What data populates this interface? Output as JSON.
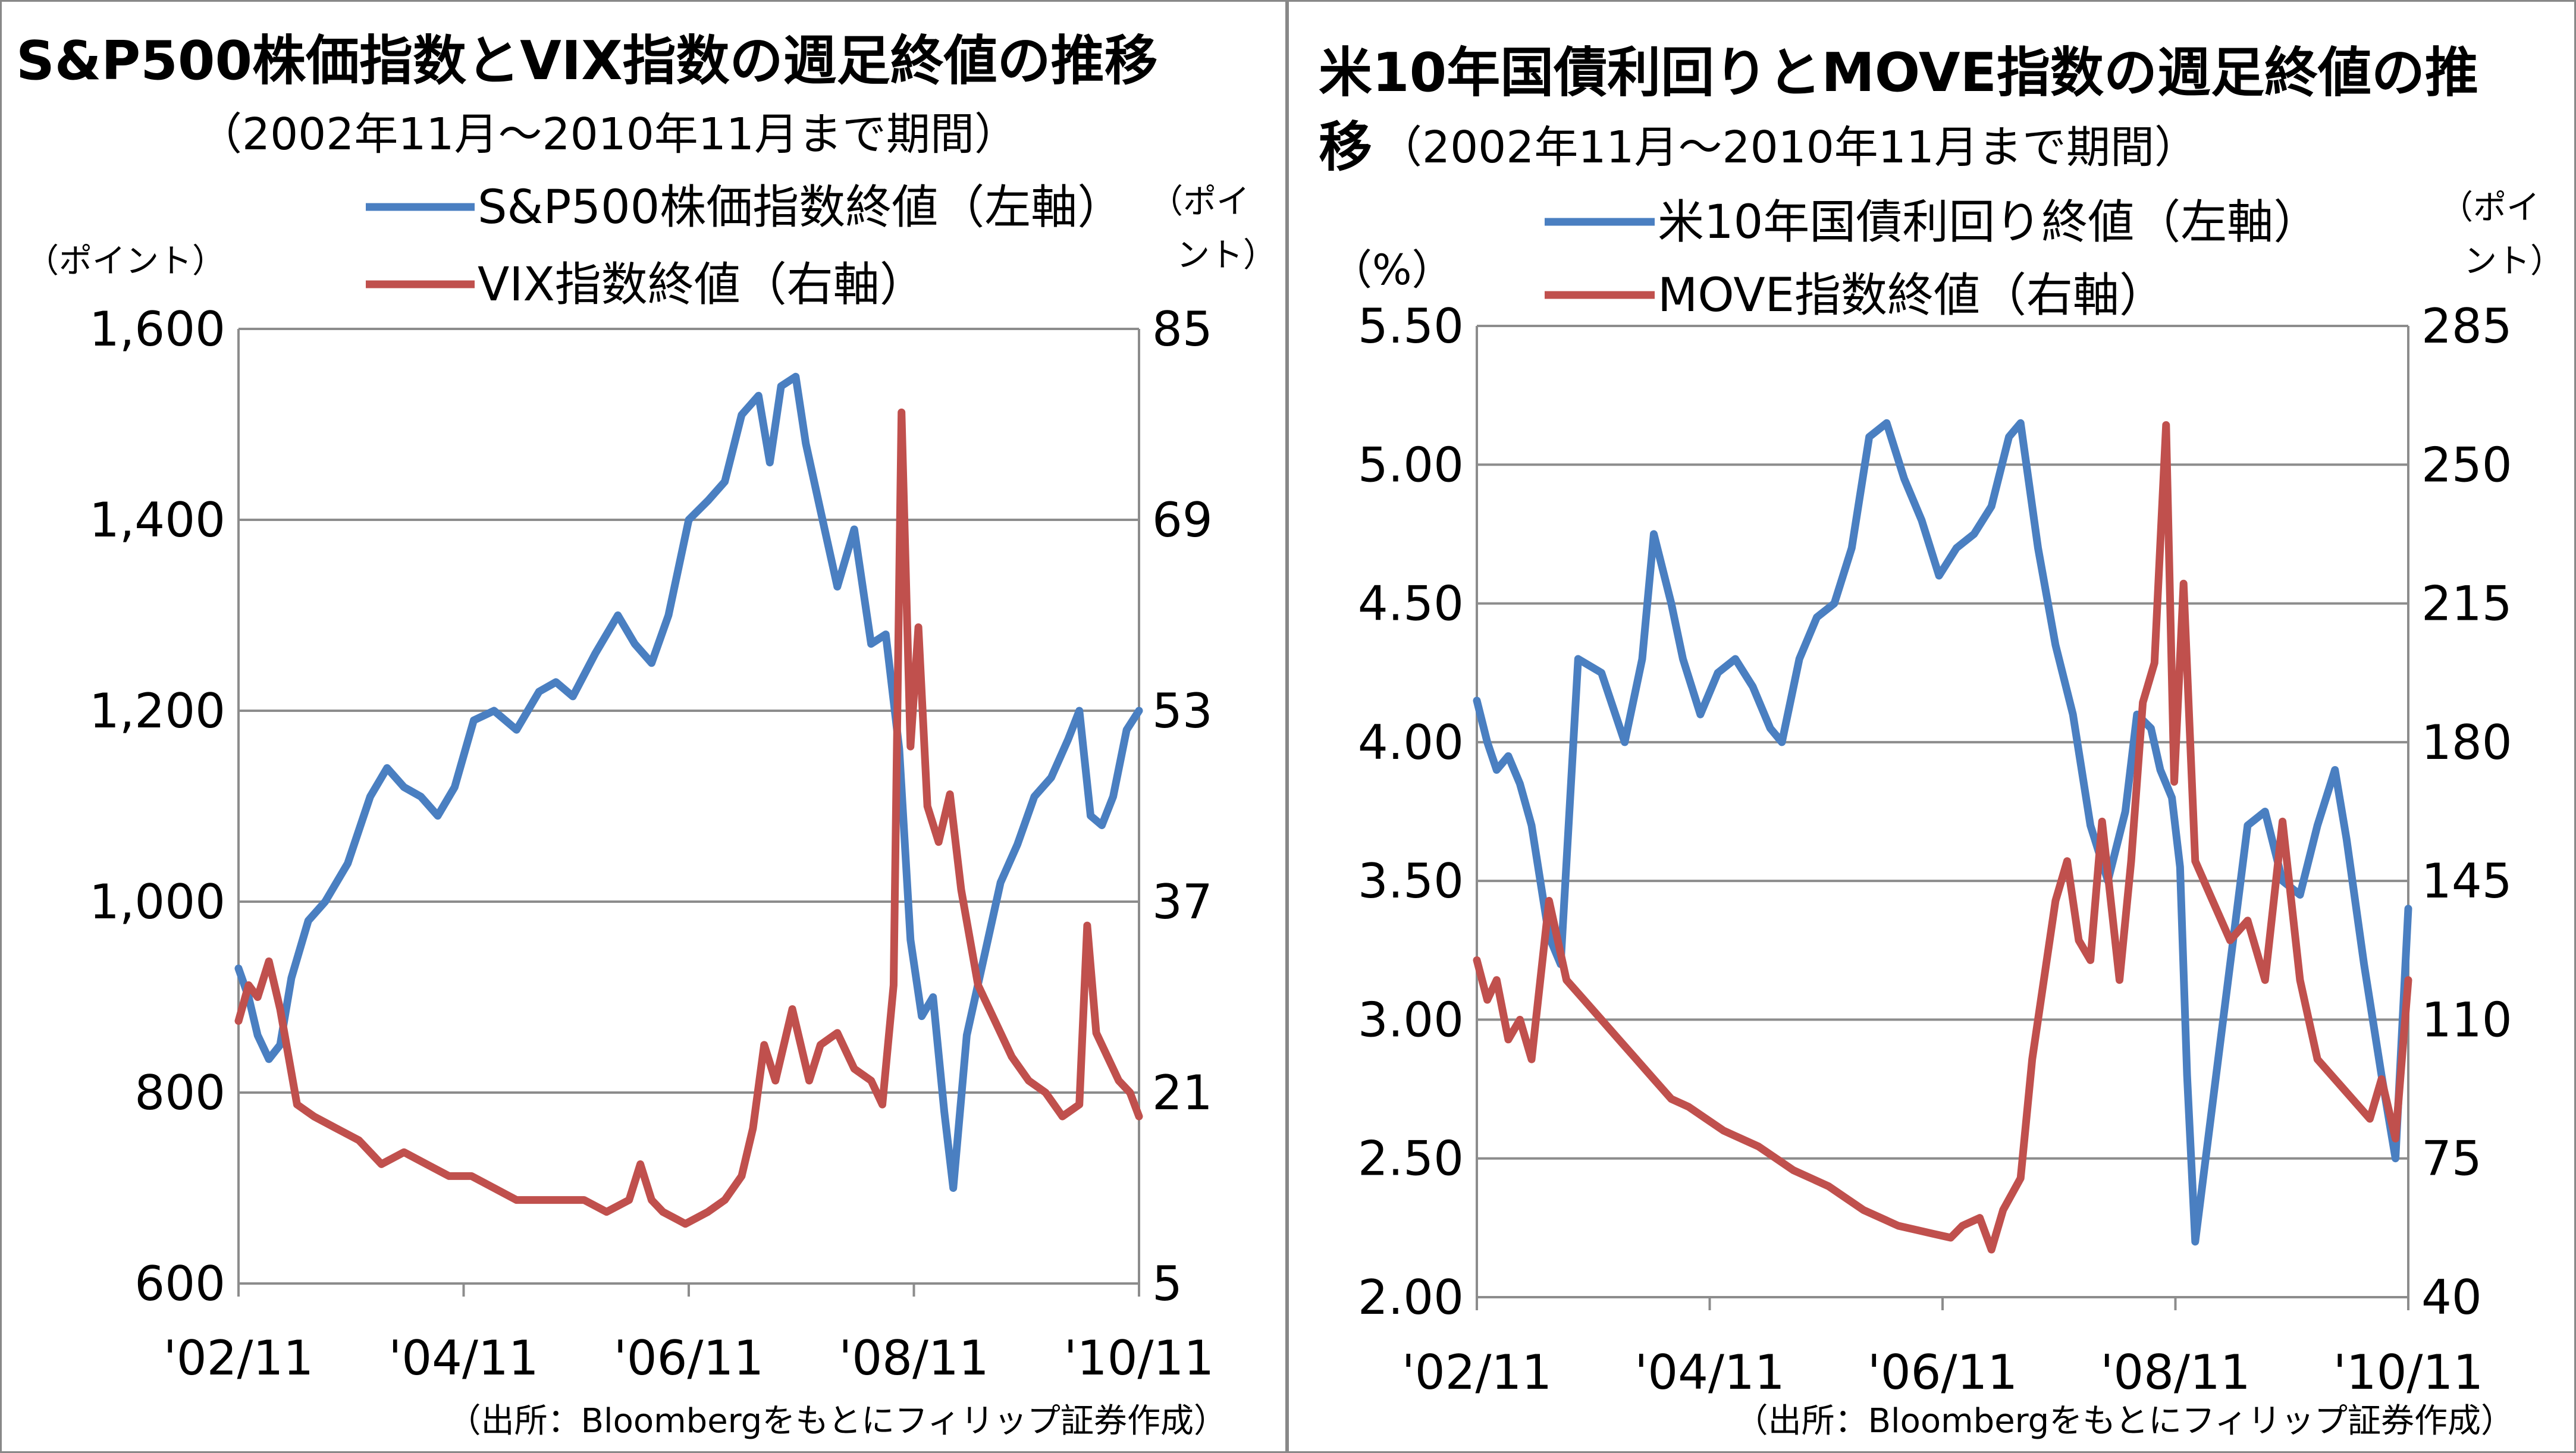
{
  "colors": {
    "series_left": "#4a7fc1",
    "series_right": "#c0504d",
    "grid": "#8c8c8c",
    "axis": "#8c8c8c"
  },
  "source_note": "（出所：Bloombergをもとにフィリップ証券作成）",
  "chart_data": [
    {
      "type": "line",
      "title": "S&P500株価指数とVIX指数の週足終値の推移",
      "subtitle": "（2002年11月～2010年11月まで期間）",
      "left_axis": {
        "unit": "（ポイント）",
        "ticks": [
          "1,600",
          "1,400",
          "1,200",
          "1,000",
          "800",
          "600"
        ],
        "range": [
          600,
          1600
        ]
      },
      "right_axis": {
        "unit_line1": "（ポイ",
        "unit_line2": "ント）",
        "ticks": [
          "85",
          "69",
          "53",
          "37",
          "21",
          "5"
        ],
        "range": [
          5,
          85
        ]
      },
      "x_ticks": [
        "'02/11",
        "'04/11",
        "'06/11",
        "'08/11",
        "'10/11"
      ],
      "x_tick_positions": [
        2002.83,
        2004.83,
        2006.83,
        2008.83,
        2010.83
      ],
      "x_range": [
        2002.83,
        2010.83
      ],
      "grid": true,
      "legend_placement": "top",
      "series": [
        {
          "name": "S&P500株価指数終値（左軸）",
          "axis": "left",
          "color": "#4a7fc1",
          "x": [
            2002.83,
            2002.92,
            2003.0,
            2003.1,
            2003.2,
            2003.3,
            2003.45,
            2003.6,
            2003.8,
            2004.0,
            2004.15,
            2004.3,
            2004.45,
            2004.6,
            2004.75,
            2004.92,
            2005.1,
            2005.3,
            2005.5,
            2005.65,
            2005.8,
            2006.0,
            2006.2,
            2006.35,
            2006.5,
            2006.65,
            2006.83,
            2007.0,
            2007.15,
            2007.3,
            2007.45,
            2007.55,
            2007.65,
            2007.78,
            2007.87,
            2008.0,
            2008.15,
            2008.3,
            2008.45,
            2008.58,
            2008.7,
            2008.8,
            2008.9,
            2009.0,
            2009.1,
            2009.18,
            2009.3,
            2009.45,
            2009.6,
            2009.75,
            2009.9,
            2010.05,
            2010.2,
            2010.3,
            2010.4,
            2010.5,
            2010.6,
            2010.72,
            2010.83
          ],
          "values": [
            930,
            900,
            860,
            835,
            850,
            920,
            980,
            1000,
            1040,
            1110,
            1140,
            1120,
            1110,
            1090,
            1120,
            1190,
            1200,
            1180,
            1220,
            1230,
            1215,
            1260,
            1300,
            1270,
            1250,
            1300,
            1400,
            1420,
            1440,
            1510,
            1530,
            1460,
            1540,
            1550,
            1480,
            1410,
            1330,
            1390,
            1270,
            1280,
            1160,
            960,
            880,
            900,
            780,
            700,
            860,
            940,
            1020,
            1060,
            1110,
            1130,
            1170,
            1200,
            1090,
            1080,
            1110,
            1180,
            1200
          ]
        },
        {
          "name": "VIX指数終値（右軸）",
          "axis": "right",
          "color": "#c0504d",
          "x": [
            2002.83,
            2002.92,
            2003.0,
            2003.1,
            2003.2,
            2003.35,
            2003.5,
            2003.7,
            2003.9,
            2004.1,
            2004.3,
            2004.5,
            2004.7,
            2004.9,
            2005.1,
            2005.3,
            2005.5,
            2005.7,
            2005.9,
            2006.1,
            2006.3,
            2006.4,
            2006.5,
            2006.6,
            2006.8,
            2007.0,
            2007.15,
            2007.3,
            2007.4,
            2007.5,
            2007.6,
            2007.75,
            2007.9,
            2008.0,
            2008.15,
            2008.3,
            2008.45,
            2008.55,
            2008.65,
            2008.72,
            2008.8,
            2008.87,
            2008.95,
            2009.05,
            2009.15,
            2009.25,
            2009.4,
            2009.55,
            2009.7,
            2009.85,
            2010.0,
            2010.15,
            2010.3,
            2010.37,
            2010.45,
            2010.55,
            2010.65,
            2010.75,
            2010.83
          ],
          "values": [
            27,
            30,
            29,
            32,
            28,
            20,
            19,
            18,
            17,
            15,
            16,
            15,
            14,
            14,
            13,
            12,
            12,
            12,
            12,
            11,
            12,
            15,
            12,
            11,
            10,
            11,
            12,
            14,
            18,
            25,
            22,
            28,
            22,
            25,
            26,
            23,
            22,
            20,
            30,
            78,
            50,
            60,
            45,
            42,
            46,
            38,
            30,
            27,
            24,
            22,
            21,
            19,
            20,
            35,
            26,
            24,
            22,
            21,
            19
          ]
        }
      ]
    },
    {
      "type": "line",
      "title_line1": "米10年国債利回りとMOVE指数の週足終値の推",
      "title_line2": "移",
      "subtitle": "（2002年11月～2010年11月まで期間）",
      "left_axis": {
        "unit": "（%）",
        "ticks": [
          "5.50",
          "5.00",
          "4.50",
          "4.00",
          "3.50",
          "3.00",
          "2.50",
          "2.00"
        ],
        "range": [
          2.0,
          5.5
        ]
      },
      "right_axis": {
        "unit_line1": "（ポイ",
        "unit_line2": "ント）",
        "ticks": [
          "285",
          "250",
          "215",
          "180",
          "145",
          "110",
          "75",
          "40"
        ],
        "range": [
          40,
          285
        ]
      },
      "x_ticks": [
        "'02/11",
        "'04/11",
        "'06/11",
        "'08/11",
        "'10/11"
      ],
      "x_tick_positions": [
        2002.83,
        2004.83,
        2006.83,
        2008.83,
        2010.83
      ],
      "x_range": [
        2002.83,
        2010.83
      ],
      "grid": true,
      "legend_placement": "top",
      "series": [
        {
          "name": "米10年国債利回り終値（左軸）",
          "axis": "left",
          "color": "#4a7fc1",
          "x": [
            2002.83,
            2002.92,
            2003.0,
            2003.1,
            2003.2,
            2003.3,
            2003.45,
            2003.55,
            2003.7,
            2003.9,
            2004.1,
            2004.25,
            2004.35,
            2004.5,
            2004.6,
            2004.75,
            2004.9,
            2005.05,
            2005.2,
            2005.35,
            2005.45,
            2005.6,
            2005.75,
            2005.9,
            2006.05,
            2006.2,
            2006.35,
            2006.5,
            2006.65,
            2006.8,
            2006.95,
            2007.1,
            2007.25,
            2007.4,
            2007.5,
            2007.65,
            2007.8,
            2007.95,
            2008.1,
            2008.25,
            2008.4,
            2008.5,
            2008.62,
            2008.7,
            2008.8,
            2008.87,
            2008.93,
            2009.0,
            2009.15,
            2009.3,
            2009.45,
            2009.6,
            2009.75,
            2009.9,
            2010.05,
            2010.2,
            2010.3,
            2010.45,
            2010.6,
            2010.72,
            2010.83
          ],
          "values": [
            4.15,
            4.0,
            3.9,
            3.95,
            3.85,
            3.7,
            3.3,
            3.2,
            4.3,
            4.25,
            4.0,
            4.3,
            4.75,
            4.5,
            4.3,
            4.1,
            4.25,
            4.3,
            4.2,
            4.05,
            4.0,
            4.3,
            4.45,
            4.5,
            4.7,
            5.1,
            5.15,
            4.95,
            4.8,
            4.6,
            4.7,
            4.75,
            4.85,
            5.1,
            5.15,
            4.7,
            4.35,
            4.1,
            3.7,
            3.5,
            3.75,
            4.1,
            4.05,
            3.9,
            3.8,
            3.55,
            2.8,
            2.2,
            2.7,
            3.2,
            3.7,
            3.75,
            3.5,
            3.45,
            3.7,
            3.9,
            3.65,
            3.2,
            2.8,
            2.5,
            3.4
          ]
        },
        {
          "name": "MOVE指数終値（右軸）",
          "axis": "right",
          "color": "#c0504d",
          "x": [
            2002.83,
            2002.92,
            2003.0,
            2003.1,
            2003.2,
            2003.3,
            2003.45,
            2003.6,
            2003.75,
            2003.9,
            2004.05,
            2004.2,
            2004.35,
            2004.5,
            2004.65,
            2004.8,
            2004.95,
            2005.1,
            2005.25,
            2005.4,
            2005.55,
            2005.7,
            2005.85,
            2006.0,
            2006.15,
            2006.3,
            2006.45,
            2006.6,
            2006.75,
            2006.9,
            2007.0,
            2007.15,
            2007.25,
            2007.35,
            2007.5,
            2007.6,
            2007.7,
            2007.8,
            2007.9,
            2008.0,
            2008.1,
            2008.2,
            2008.35,
            2008.45,
            2008.55,
            2008.65,
            2008.75,
            2008.82,
            2008.9,
            2009.0,
            2009.15,
            2009.3,
            2009.45,
            2009.6,
            2009.75,
            2009.9,
            2010.05,
            2010.2,
            2010.35,
            2010.5,
            2010.6,
            2010.72,
            2010.83
          ],
          "values": [
            125,
            115,
            120,
            105,
            110,
            100,
            140,
            120,
            115,
            110,
            105,
            100,
            95,
            90,
            88,
            85,
            82,
            80,
            78,
            75,
            72,
            70,
            68,
            65,
            62,
            60,
            58,
            57,
            56,
            55,
            58,
            60,
            52,
            62,
            70,
            100,
            120,
            140,
            150,
            130,
            125,
            160,
            120,
            150,
            190,
            200,
            260,
            170,
            220,
            150,
            140,
            130,
            135,
            120,
            160,
            120,
            100,
            95,
            90,
            85,
            95,
            80,
            120
          ]
        }
      ]
    }
  ]
}
